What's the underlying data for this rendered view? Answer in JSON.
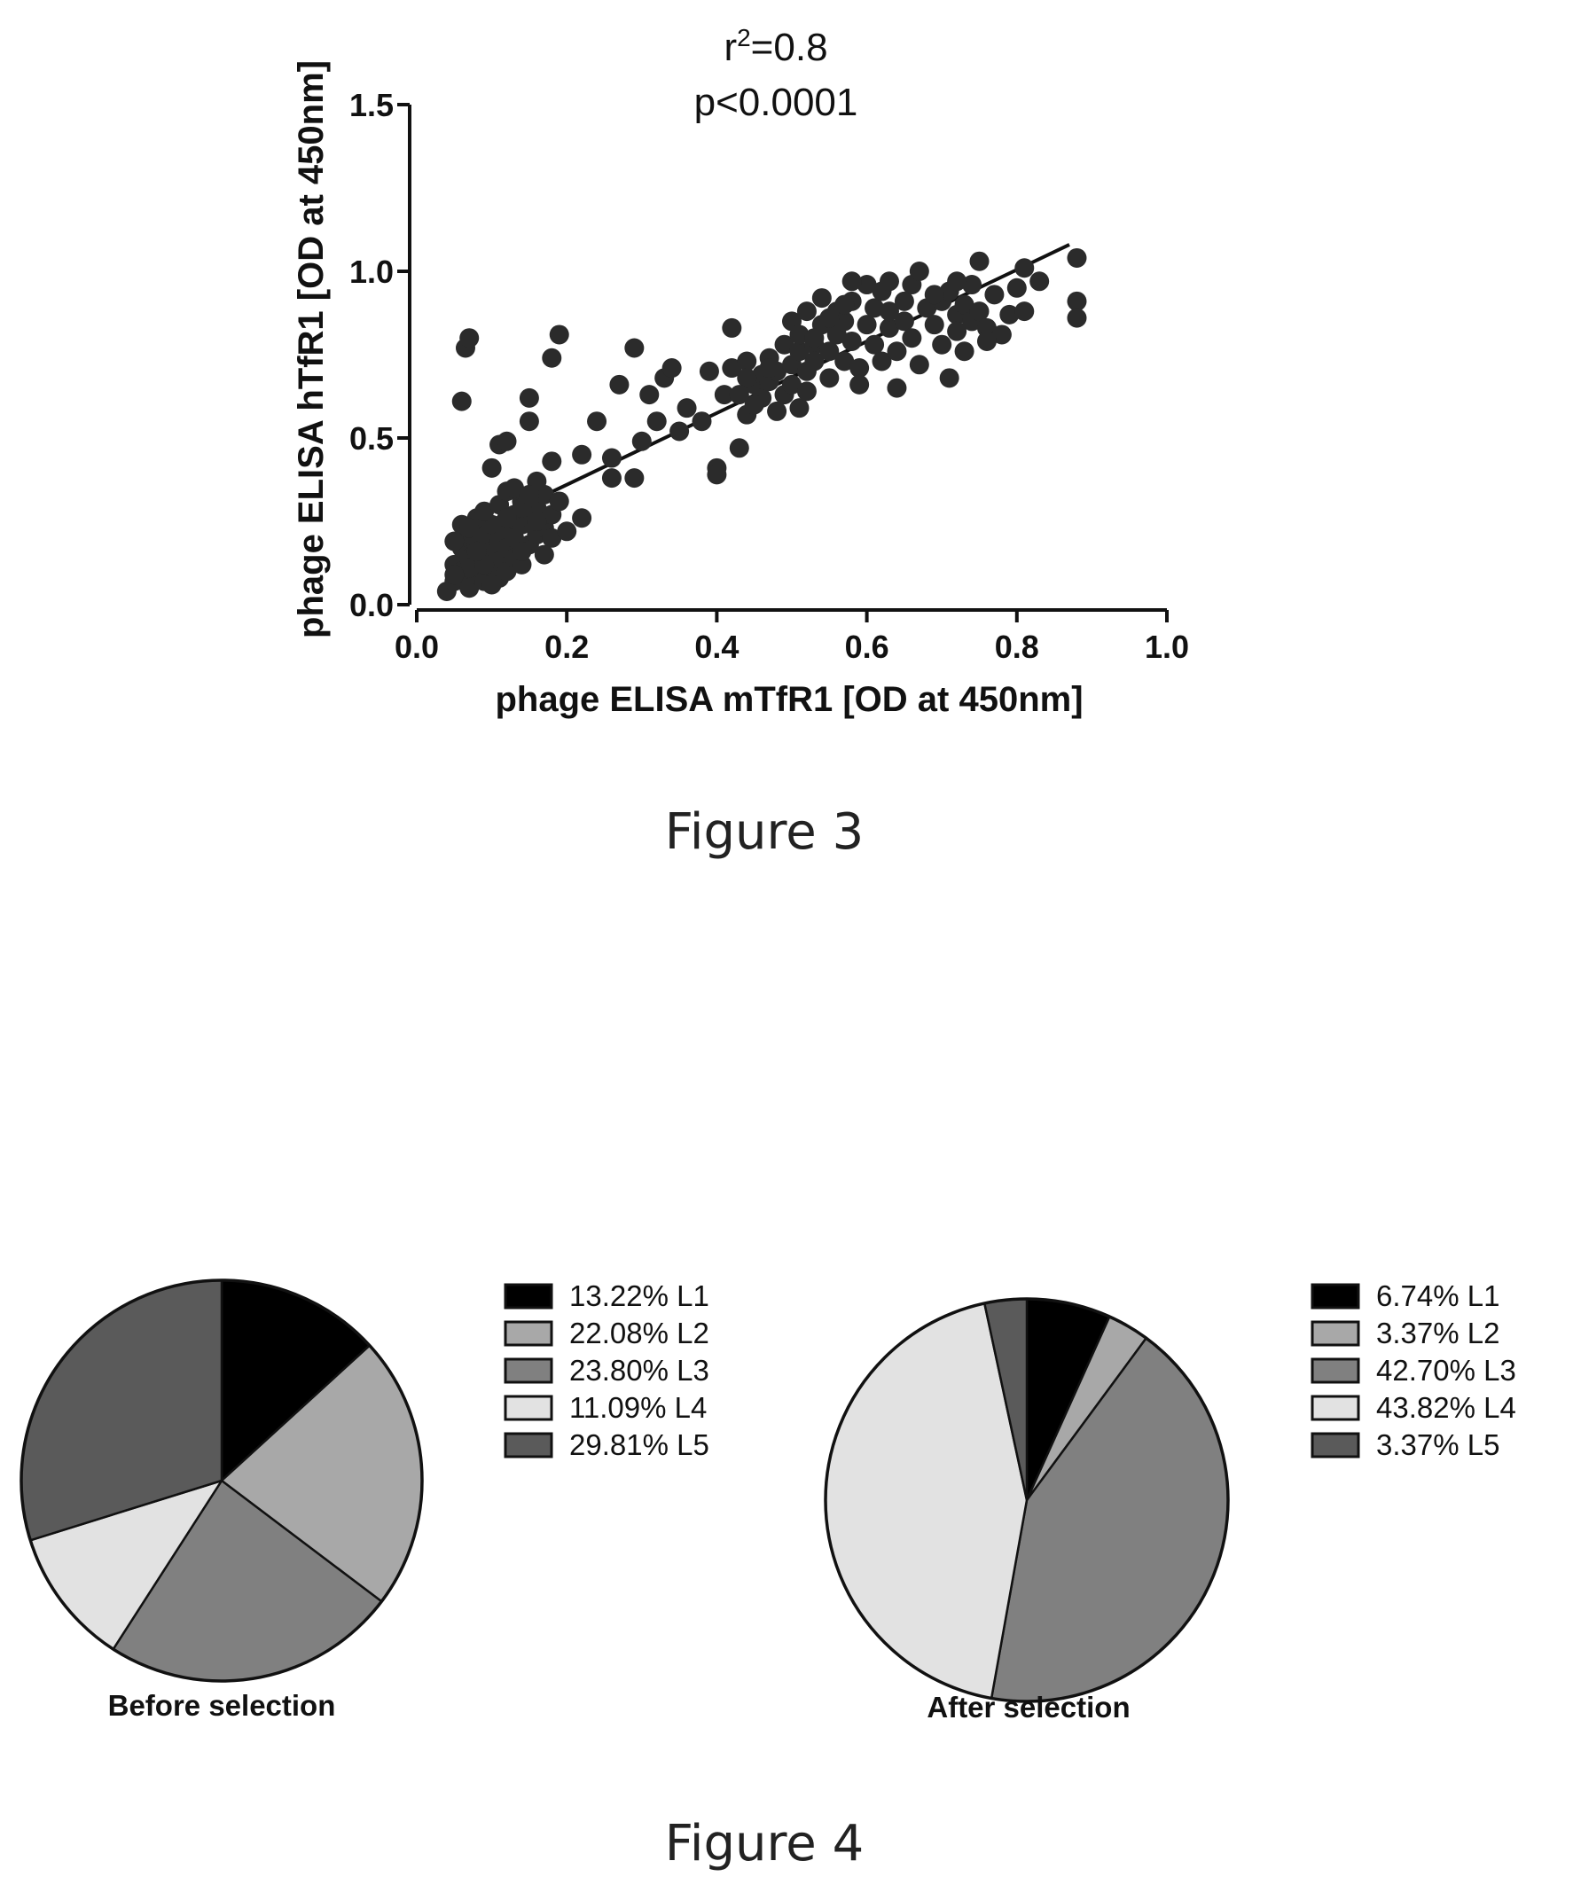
{
  "figure3": {
    "caption": "Figure 3",
    "annotation_r2_prefix": "r",
    "annotation_r2_sup": "2",
    "annotation_r2_value": "=0.8",
    "annotation_p": "p<0.0001"
  },
  "figure4": {
    "caption": "Figure 4"
  },
  "chart_data": [
    {
      "type": "scatter",
      "xlabel": "phage ELISA mTfR1 [OD at 450nm]",
      "ylabel": "phage ELISA hTfR1 [OD at 450nm]",
      "xlim": [
        0.0,
        1.0
      ],
      "ylim": [
        0.0,
        1.5
      ],
      "x_ticks": [
        "0.0",
        "0.2",
        "0.4",
        "0.6",
        "0.8",
        "1.0"
      ],
      "y_ticks": [
        "0.0",
        "0.5",
        "1.0",
        "1.5"
      ],
      "x_tick_values": [
        0.0,
        0.2,
        0.4,
        0.6,
        0.8,
        1.0
      ],
      "y_tick_values": [
        0.0,
        0.5,
        1.0,
        1.5
      ],
      "grid": false,
      "marker_color": "#2b2b2b",
      "regression_line": {
        "x": [
          0.07,
          0.87
        ],
        "y": [
          0.22,
          1.08
        ]
      },
      "points": [
        [
          0.04,
          0.04
        ],
        [
          0.05,
          0.07
        ],
        [
          0.05,
          0.12
        ],
        [
          0.06,
          0.1
        ],
        [
          0.06,
          0.17
        ],
        [
          0.07,
          0.05
        ],
        [
          0.07,
          0.14
        ],
        [
          0.07,
          0.2
        ],
        [
          0.08,
          0.09
        ],
        [
          0.08,
          0.12
        ],
        [
          0.08,
          0.18
        ],
        [
          0.09,
          0.07
        ],
        [
          0.09,
          0.15
        ],
        [
          0.09,
          0.21
        ],
        [
          0.1,
          0.11
        ],
        [
          0.1,
          0.16
        ],
        [
          0.1,
          0.24
        ],
        [
          0.11,
          0.08
        ],
        [
          0.11,
          0.19
        ],
        [
          0.11,
          0.13
        ],
        [
          0.12,
          0.22
        ],
        [
          0.12,
          0.17
        ],
        [
          0.12,
          0.1
        ],
        [
          0.13,
          0.27
        ],
        [
          0.13,
          0.2
        ],
        [
          0.13,
          0.14
        ],
        [
          0.14,
          0.24
        ],
        [
          0.14,
          0.31
        ],
        [
          0.15,
          0.18
        ],
        [
          0.15,
          0.26
        ],
        [
          0.16,
          0.21
        ],
        [
          0.16,
          0.29
        ],
        [
          0.17,
          0.33
        ],
        [
          0.17,
          0.23
        ],
        [
          0.18,
          0.27
        ],
        [
          0.18,
          0.2
        ],
        [
          0.06,
          0.24
        ],
        [
          0.08,
          0.26
        ],
        [
          0.05,
          0.19
        ],
        [
          0.07,
          0.11
        ],
        [
          0.09,
          0.28
        ],
        [
          0.1,
          0.06
        ],
        [
          0.11,
          0.3
        ],
        [
          0.12,
          0.34
        ],
        [
          0.14,
          0.12
        ],
        [
          0.19,
          0.31
        ],
        [
          0.2,
          0.22
        ],
        [
          0.06,
          0.61
        ],
        [
          0.065,
          0.77
        ],
        [
          0.07,
          0.8
        ],
        [
          0.1,
          0.41
        ],
        [
          0.11,
          0.48
        ],
        [
          0.12,
          0.49
        ],
        [
          0.15,
          0.55
        ],
        [
          0.15,
          0.62
        ],
        [
          0.18,
          0.43
        ],
        [
          0.18,
          0.74
        ],
        [
          0.19,
          0.81
        ],
        [
          0.22,
          0.45
        ],
        [
          0.22,
          0.26
        ],
        [
          0.24,
          0.55
        ],
        [
          0.26,
          0.38
        ],
        [
          0.27,
          0.66
        ],
        [
          0.29,
          0.38
        ],
        [
          0.29,
          0.77
        ],
        [
          0.31,
          0.63
        ],
        [
          0.32,
          0.55
        ],
        [
          0.33,
          0.68
        ],
        [
          0.34,
          0.71
        ],
        [
          0.35,
          0.52
        ],
        [
          0.38,
          0.55
        ],
        [
          0.39,
          0.7
        ],
        [
          0.4,
          0.41
        ],
        [
          0.4,
          0.39
        ],
        [
          0.41,
          0.63
        ],
        [
          0.42,
          0.83
        ],
        [
          0.42,
          0.71
        ],
        [
          0.43,
          0.47
        ],
        [
          0.44,
          0.57
        ],
        [
          0.44,
          0.73
        ],
        [
          0.45,
          0.66
        ],
        [
          0.46,
          0.69
        ],
        [
          0.46,
          0.62
        ],
        [
          0.47,
          0.74
        ],
        [
          0.47,
          0.67
        ],
        [
          0.48,
          0.58
        ],
        [
          0.48,
          0.7
        ],
        [
          0.49,
          0.63
        ],
        [
          0.49,
          0.78
        ],
        [
          0.5,
          0.72
        ],
        [
          0.5,
          0.66
        ],
        [
          0.5,
          0.85
        ],
        [
          0.51,
          0.59
        ],
        [
          0.51,
          0.76
        ],
        [
          0.51,
          0.81
        ],
        [
          0.52,
          0.7
        ],
        [
          0.52,
          0.64
        ],
        [
          0.53,
          0.78
        ],
        [
          0.53,
          0.73
        ],
        [
          0.54,
          0.84
        ],
        [
          0.54,
          0.92
        ],
        [
          0.55,
          0.76
        ],
        [
          0.55,
          0.68
        ],
        [
          0.56,
          0.81
        ],
        [
          0.56,
          0.88
        ],
        [
          0.57,
          0.73
        ],
        [
          0.57,
          0.85
        ],
        [
          0.58,
          0.79
        ],
        [
          0.58,
          0.91
        ],
        [
          0.59,
          0.71
        ],
        [
          0.59,
          0.66
        ],
        [
          0.6,
          0.84
        ],
        [
          0.6,
          0.96
        ],
        [
          0.61,
          0.78
        ],
        [
          0.61,
          0.89
        ],
        [
          0.62,
          0.73
        ],
        [
          0.62,
          0.94
        ],
        [
          0.63,
          0.83
        ],
        [
          0.63,
          0.88
        ],
        [
          0.64,
          0.65
        ],
        [
          0.64,
          0.76
        ],
        [
          0.65,
          0.91
        ],
        [
          0.65,
          0.85
        ],
        [
          0.66,
          0.8
        ],
        [
          0.66,
          0.96
        ],
        [
          0.67,
          0.72
        ],
        [
          0.67,
          1.0
        ],
        [
          0.68,
          0.89
        ],
        [
          0.69,
          0.84
        ],
        [
          0.7,
          0.91
        ],
        [
          0.7,
          0.78
        ],
        [
          0.71,
          0.94
        ],
        [
          0.71,
          0.68
        ],
        [
          0.72,
          0.87
        ],
        [
          0.72,
          0.82
        ],
        [
          0.73,
          0.9
        ],
        [
          0.73,
          0.76
        ],
        [
          0.74,
          0.96
        ],
        [
          0.74,
          0.85
        ],
        [
          0.75,
          1.03
        ],
        [
          0.75,
          0.88
        ],
        [
          0.76,
          0.83
        ],
        [
          0.77,
          0.93
        ],
        [
          0.78,
          0.81
        ],
        [
          0.79,
          0.87
        ],
        [
          0.8,
          0.95
        ],
        [
          0.81,
          1.01
        ],
        [
          0.81,
          0.88
        ],
        [
          0.83,
          0.97
        ],
        [
          0.88,
          1.04
        ],
        [
          0.88,
          0.91
        ],
        [
          0.88,
          0.86
        ],
        [
          0.76,
          0.79
        ],
        [
          0.72,
          0.97
        ],
        [
          0.69,
          0.93
        ],
        [
          0.63,
          0.97
        ],
        [
          0.58,
          0.97
        ],
        [
          0.57,
          0.9
        ],
        [
          0.55,
          0.86
        ],
        [
          0.53,
          0.8
        ],
        [
          0.52,
          0.88
        ],
        [
          0.47,
          0.71
        ],
        [
          0.45,
          0.6
        ],
        [
          0.44,
          0.68
        ],
        [
          0.43,
          0.63
        ],
        [
          0.36,
          0.59
        ],
        [
          0.3,
          0.49
        ],
        [
          0.26,
          0.44
        ],
        [
          0.16,
          0.37
        ],
        [
          0.14,
          0.29
        ],
        [
          0.13,
          0.35
        ],
        [
          0.09,
          0.12
        ],
        [
          0.08,
          0.16
        ],
        [
          0.07,
          0.23
        ],
        [
          0.05,
          0.09
        ],
        [
          0.12,
          0.26
        ],
        [
          0.15,
          0.33
        ],
        [
          0.17,
          0.15
        ],
        [
          0.16,
          0.25
        ],
        [
          0.14,
          0.16
        ]
      ]
    },
    {
      "type": "pie",
      "title": "Before selection",
      "legend_position": "right",
      "slices": [
        {
          "label": "L1",
          "percent_text": "13.22%",
          "value": 13.22,
          "color": "#000000"
        },
        {
          "label": "L2",
          "percent_text": "22.08%",
          "value": 22.08,
          "color": "#a8a8a8"
        },
        {
          "label": "L3",
          "percent_text": "23.80%",
          "value": 23.8,
          "color": "#808080"
        },
        {
          "label": "L4",
          "percent_text": "11.09%",
          "value": 11.09,
          "color": "#e2e2e2"
        },
        {
          "label": "L5",
          "percent_text": "29.81%",
          "value": 29.81,
          "color": "#5a5a5a"
        }
      ]
    },
    {
      "type": "pie",
      "title": "After selection",
      "legend_position": "right",
      "slices": [
        {
          "label": "L1",
          "percent_text": "6.74%",
          "value": 6.74,
          "color": "#000000"
        },
        {
          "label": "L2",
          "percent_text": "3.37%",
          "value": 3.37,
          "color": "#a8a8a8"
        },
        {
          "label": "L3",
          "percent_text": "42.70%",
          "value": 42.7,
          "color": "#808080"
        },
        {
          "label": "L4",
          "percent_text": "43.82%",
          "value": 43.82,
          "color": "#e2e2e2"
        },
        {
          "label": "L5",
          "percent_text": "3.37%",
          "value": 3.37,
          "color": "#5a5a5a"
        }
      ]
    }
  ]
}
